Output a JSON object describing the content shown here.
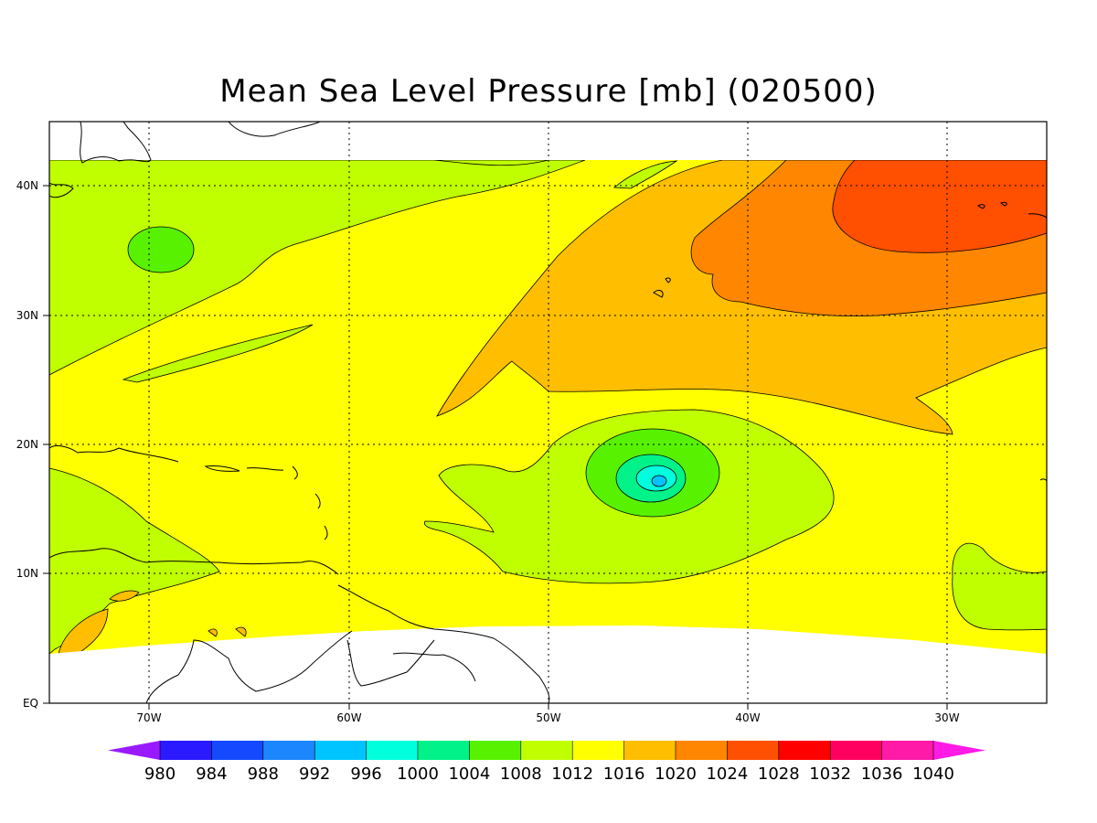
{
  "title": "Mean Sea Level Pressure [mb] (020500)",
  "axes": {
    "x_ticks": [
      "70W",
      "60W",
      "50W",
      "40W",
      "30W"
    ],
    "y_ticks": [
      "EQ",
      "10N",
      "20N",
      "30N",
      "40N"
    ]
  },
  "colorbar": {
    "levels": [
      "980",
      "984",
      "988",
      "992",
      "996",
      "1000",
      "1004",
      "1008",
      "1012",
      "1016",
      "1020",
      "1024",
      "1028",
      "1032",
      "1036",
      "1040"
    ],
    "colors": [
      "#9a1aff",
      "#2a1aff",
      "#1449ff",
      "#1c86ff",
      "#00c4ff",
      "#00ffdd",
      "#00f289",
      "#58f200",
      "#c0ff00",
      "#ffff00",
      "#ffbe00",
      "#ff8600",
      "#ff4f00",
      "#ff0000",
      "#ff0060",
      "#ff1aa8",
      "#ff1ae6"
    ]
  },
  "map_colors": {
    "land_outline": "#000000",
    "no_data": "#ffffff"
  }
}
